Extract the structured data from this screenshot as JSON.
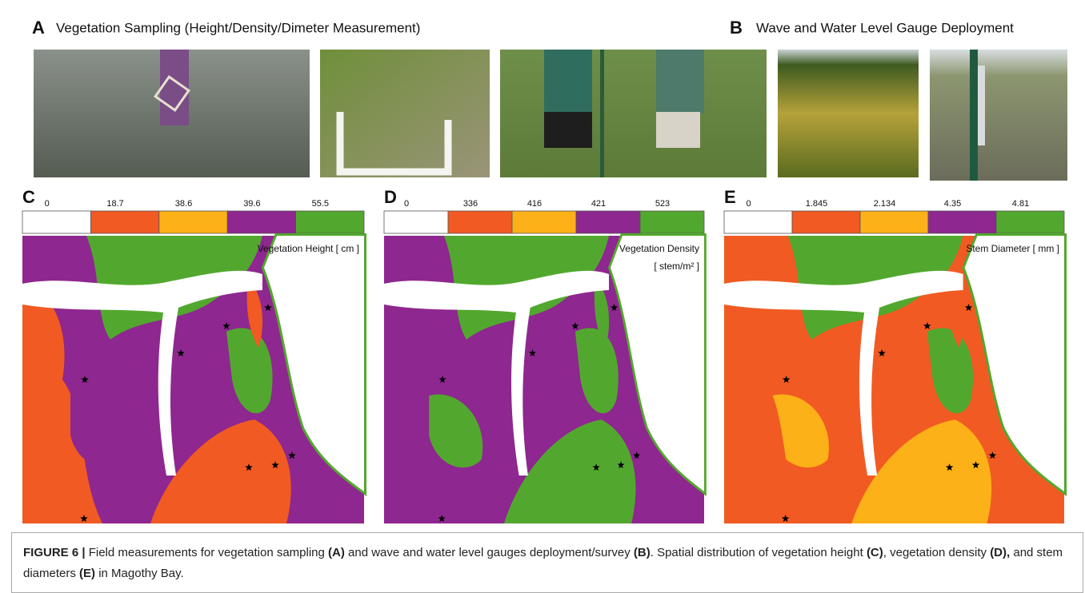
{
  "panels": {
    "A": {
      "label": "A",
      "title": "Vegetation Sampling (Height/Density/Dimeter Measurement)"
    },
    "B": {
      "label": "B",
      "title": "Wave and Water Level Gauge Deployment"
    }
  },
  "maps": [
    {
      "label": "C",
      "title": "Vegetation Height [ cm ]",
      "colorbar": {
        "ticks": [
          0,
          18.7,
          38.6,
          39.6,
          55.5
        ],
        "colors": [
          "#ffffff",
          "#f15a22",
          "#fbb117",
          "#8e278f",
          "#52a82e"
        ]
      }
    },
    {
      "label": "D",
      "title": "Vegetation Density",
      "unit": "[ stem/m² ]",
      "colorbar": {
        "ticks": [
          0,
          336,
          416,
          421,
          523
        ],
        "colors": [
          "#ffffff",
          "#f15a22",
          "#fbb117",
          "#8e278f",
          "#52a82e"
        ]
      }
    },
    {
      "label": "E",
      "title": "Stem Diameter [ mm ]",
      "colorbar": {
        "ticks": [
          0,
          1.845,
          2.134,
          4.35,
          4.81
        ],
        "colors": [
          "#ffffff",
          "#f15a22",
          "#fbb117",
          "#8e278f",
          "#52a82e"
        ]
      }
    }
  ],
  "caption": [
    {
      "text": "FIGURE 6 |",
      "bold": true
    },
    {
      "text": " Field measurements for vegetation sampling ",
      "bold": false
    },
    {
      "text": "(A)",
      "bold": true
    },
    {
      "text": " and wave and water level gauges deployment/survey ",
      "bold": false
    },
    {
      "text": "(B)",
      "bold": true
    },
    {
      "text": ". Spatial distribution of vegetation height ",
      "bold": false
    },
    {
      "text": "(C)",
      "bold": true
    },
    {
      "text": ", vegetation density ",
      "bold": false
    },
    {
      "text": "(D),",
      "bold": true
    },
    {
      "text": " and stem diameters ",
      "bold": false
    },
    {
      "text": "(E)",
      "bold": true
    },
    {
      "text": " in Magothy Bay.",
      "bold": false
    }
  ]
}
